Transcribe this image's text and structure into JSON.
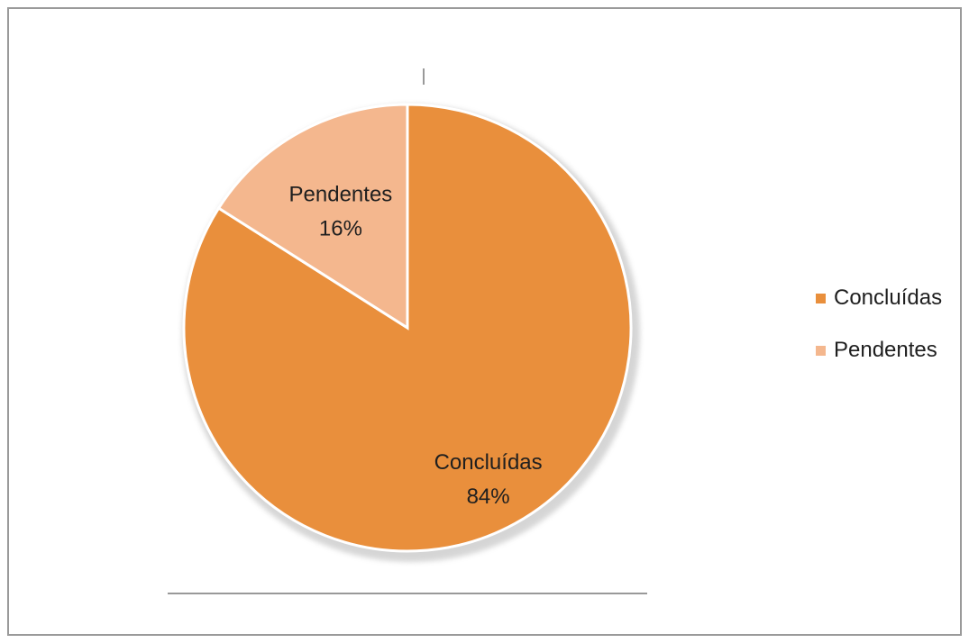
{
  "chart_data": {
    "type": "pie",
    "slices": [
      {
        "label": "Concluídas",
        "value": 84,
        "value_label": "84%",
        "color": "#e98f3c"
      },
      {
        "label": "Pendentes",
        "value": 16,
        "value_label": "16%",
        "color": "#f4b78e"
      }
    ],
    "start_angle": "top",
    "direction": "clockwise",
    "data_labels": "category and percent",
    "legend": {
      "position": "right",
      "entries": [
        "Concluídas",
        "Pendentes"
      ]
    },
    "slice_border_color": "#ffffff"
  }
}
